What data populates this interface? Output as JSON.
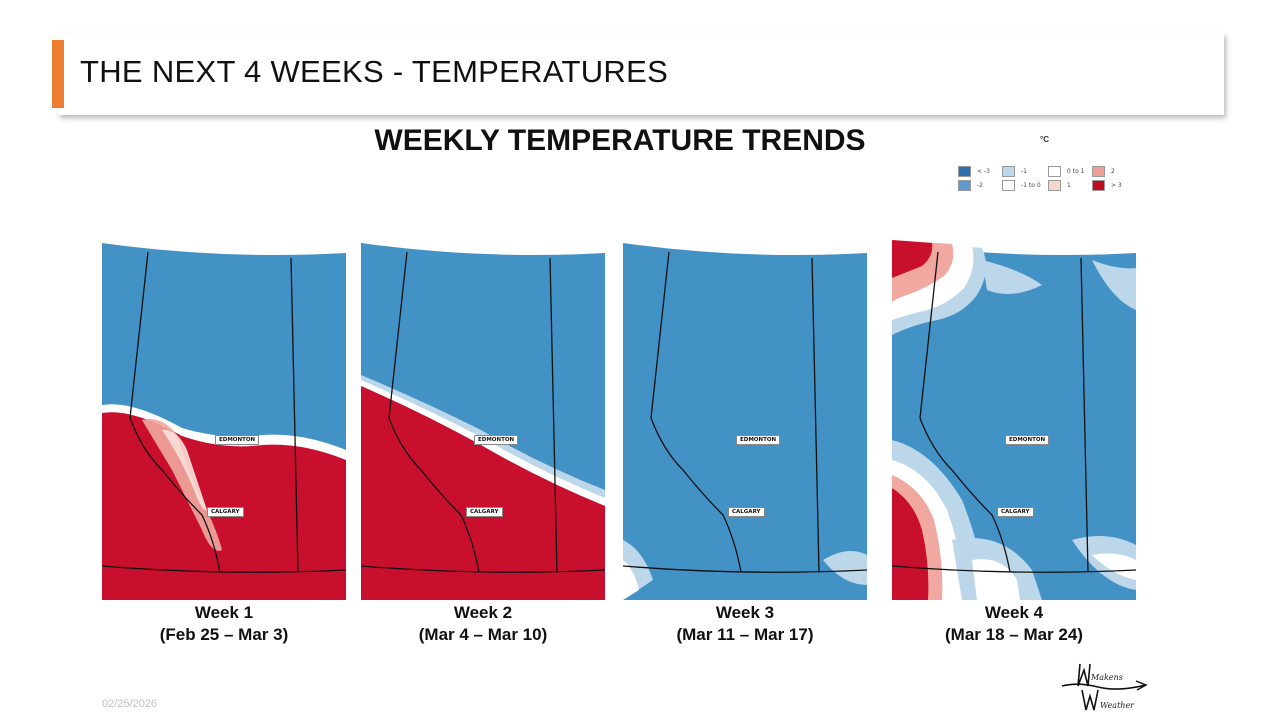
{
  "slide_title": "THE NEXT 4 WEEKS - TEMPERATURES",
  "heading": "WEEKLY TEMPERATURE TRENDS",
  "legend": {
    "unit": "°C",
    "items": [
      {
        "label": "< -3",
        "color": "#2c6fae"
      },
      {
        "label": "-2",
        "color": "#5b9bd0"
      },
      {
        "label": "-1",
        "color": "#bcd6ea"
      },
      {
        "label": "-1 to 0",
        "color": "#ffffff"
      },
      {
        "label": "0 to 1",
        "color": "#ffffff"
      },
      {
        "label": "1",
        "color": "#f8d6cc"
      },
      {
        "label": "2",
        "color": "#ef9d97"
      },
      {
        "label": "> 3",
        "color": "#c0081f"
      }
    ]
  },
  "maps": [
    {
      "week": "Week 1",
      "dates": "(Feb 25 – Mar 3)",
      "cities": {
        "edmonton": "EDMONTON",
        "calgary": "CALGARY"
      }
    },
    {
      "week": "Week 2",
      "dates": "(Mar 4 – Mar 10)",
      "cities": {
        "edmonton": "EDMONTON",
        "calgary": "CALGARY"
      }
    },
    {
      "week": "Week 3",
      "dates": "(Mar 11 – Mar 17)",
      "cities": {
        "edmonton": "EDMONTON",
        "calgary": "CALGARY"
      }
    },
    {
      "week": "Week 4",
      "dates": "(Mar 18 – Mar 24)",
      "cities": {
        "edmonton": "EDMONTON",
        "calgary": "CALGARY"
      }
    }
  ],
  "colors": {
    "cold": "#4292c6",
    "warm": "#c8102e",
    "accent": "#ed7d31"
  },
  "footer": {
    "date": "02/25/2026"
  },
  "logo": {
    "line1": "Makens",
    "line2": "Weather"
  }
}
